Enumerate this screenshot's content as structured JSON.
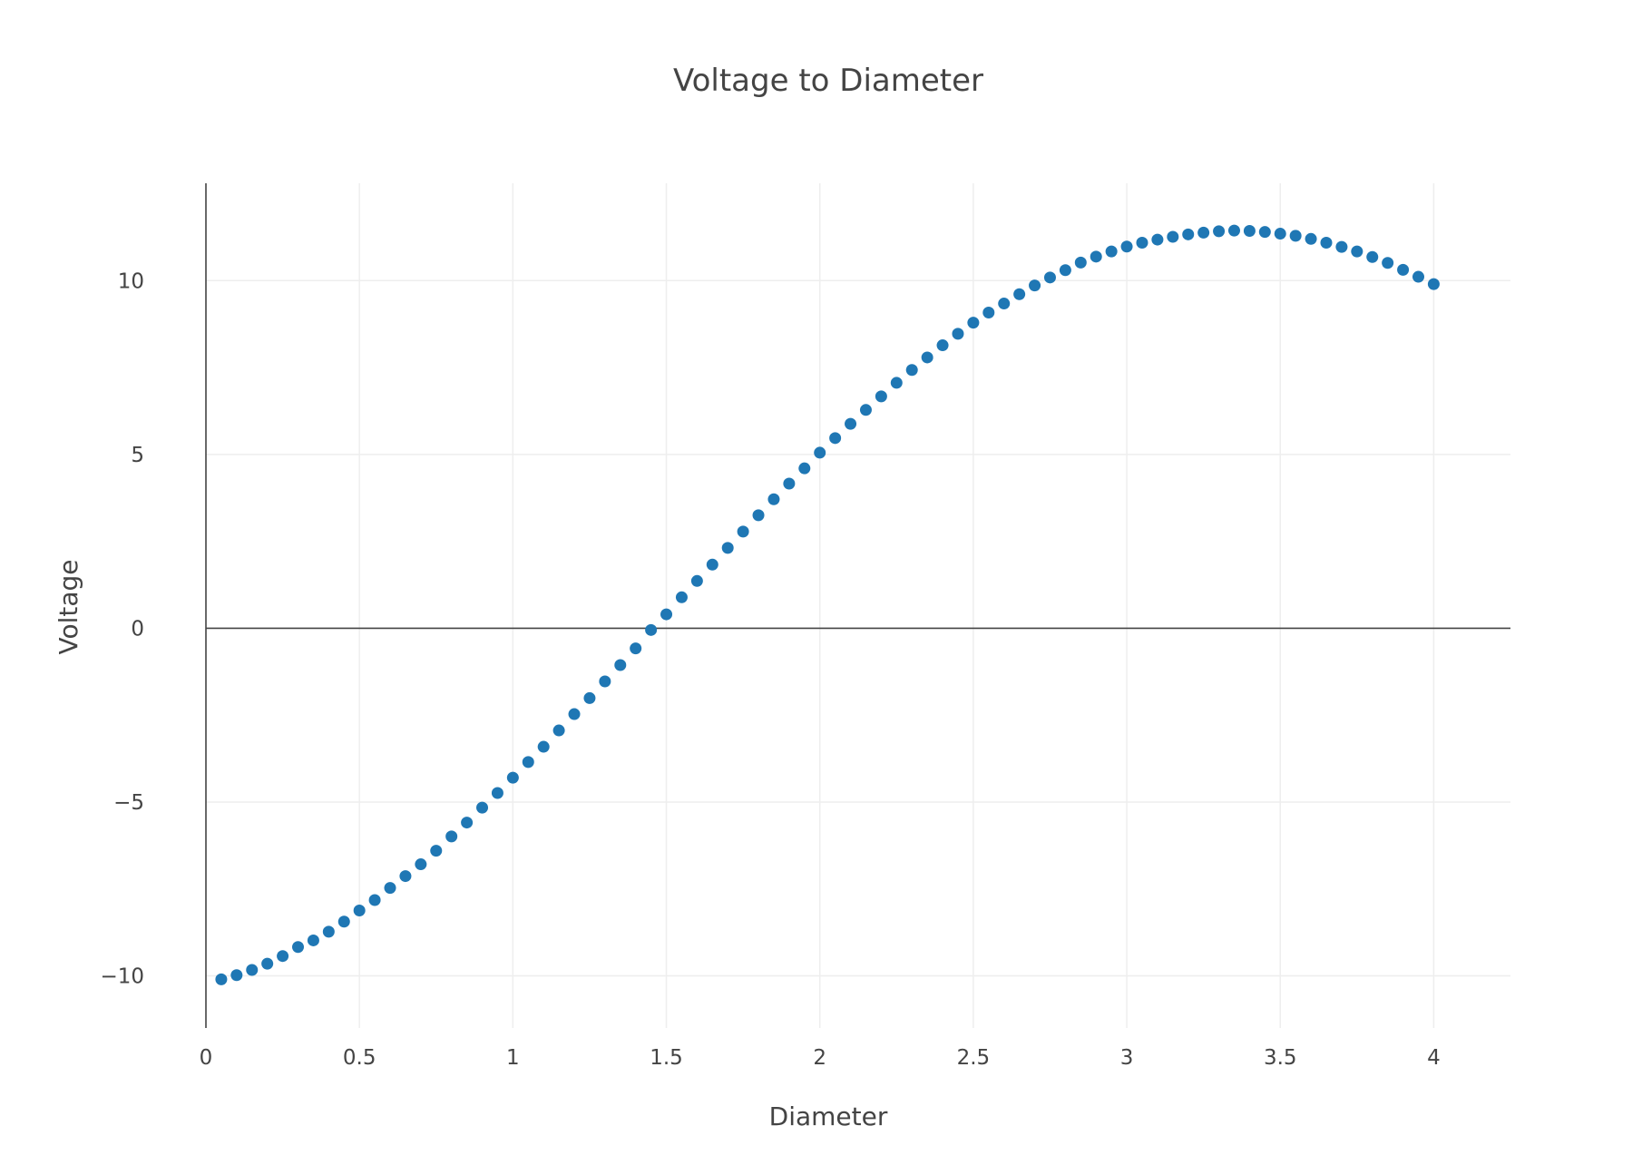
{
  "chart_data": {
    "type": "scatter",
    "title": "Voltage to Diameter",
    "xlabel": "Diameter",
    "ylabel": "Voltage",
    "xlim": [
      0,
      4.25
    ],
    "ylim": [
      -11.5,
      12.8
    ],
    "x_ticks": [
      0,
      0.5,
      1,
      1.5,
      2,
      2.5,
      3,
      3.5,
      4
    ],
    "x_tick_labels": [
      "0",
      "0.5",
      "1",
      "1.5",
      "2",
      "2.5",
      "3",
      "3.5",
      "4"
    ],
    "y_ticks": [
      -10,
      -5,
      0,
      5,
      10
    ],
    "y_tick_labels": [
      "−10",
      "−5",
      "0",
      "5",
      "10"
    ],
    "grid": true,
    "legend": false,
    "marker_color": "#1f77b4",
    "series": [
      {
        "x": [
          0.05,
          0.1,
          0.15,
          0.2,
          0.25,
          0.3,
          0.35,
          0.4,
          0.45,
          0.5,
          0.55,
          0.6,
          0.65,
          0.7,
          0.75,
          0.8,
          0.85,
          0.9,
          0.95,
          1,
          1.05,
          1.1,
          1.15,
          1.2,
          1.25,
          1.3,
          1.35,
          1.4,
          1.45,
          1.5,
          1.55,
          1.6,
          1.65,
          1.7,
          1.75,
          1.8,
          1.85,
          1.9,
          1.95,
          2,
          2.05,
          2.1,
          2.15,
          2.2,
          2.25,
          2.3,
          2.35,
          2.4,
          2.45,
          2.5,
          2.55,
          2.6,
          2.65,
          2.7,
          2.75,
          2.8,
          2.85,
          2.9,
          2.95,
          3,
          3.05,
          3.1,
          3.15,
          3.2,
          3.25,
          3.3,
          3.35,
          3.4,
          3.45,
          3.5,
          3.55,
          3.6,
          3.65,
          3.7,
          3.75,
          3.8,
          3.85,
          3.9,
          3.95,
          4
        ],
        "y": [
          -10.1,
          -9.98,
          -9.83,
          -9.65,
          -9.43,
          -9.17,
          -8.98,
          -8.73,
          -8.44,
          -8.12,
          -7.82,
          -7.47,
          -7.13,
          -6.79,
          -6.4,
          -5.99,
          -5.59,
          -5.16,
          -4.74,
          -4.3,
          -3.85,
          -3.41,
          -2.94,
          -2.47,
          -2.01,
          -1.53,
          -1.06,
          -0.58,
          -0.05,
          0.4,
          0.89,
          1.36,
          1.83,
          2.31,
          2.78,
          3.25,
          3.71,
          4.16,
          4.6,
          5.05,
          5.47,
          5.88,
          6.28,
          6.67,
          7.06,
          7.43,
          7.79,
          8.14,
          8.47,
          8.79,
          9.08,
          9.34,
          9.61,
          9.86,
          10.09,
          10.3,
          10.52,
          10.69,
          10.84,
          10.98,
          11.09,
          11.18,
          11.26,
          11.33,
          11.38,
          11.42,
          11.44,
          11.43,
          11.4,
          11.35,
          11.29,
          11.2,
          11.09,
          10.97,
          10.84,
          10.68,
          10.51,
          10.31,
          10.11,
          9.9
        ]
      }
    ]
  }
}
